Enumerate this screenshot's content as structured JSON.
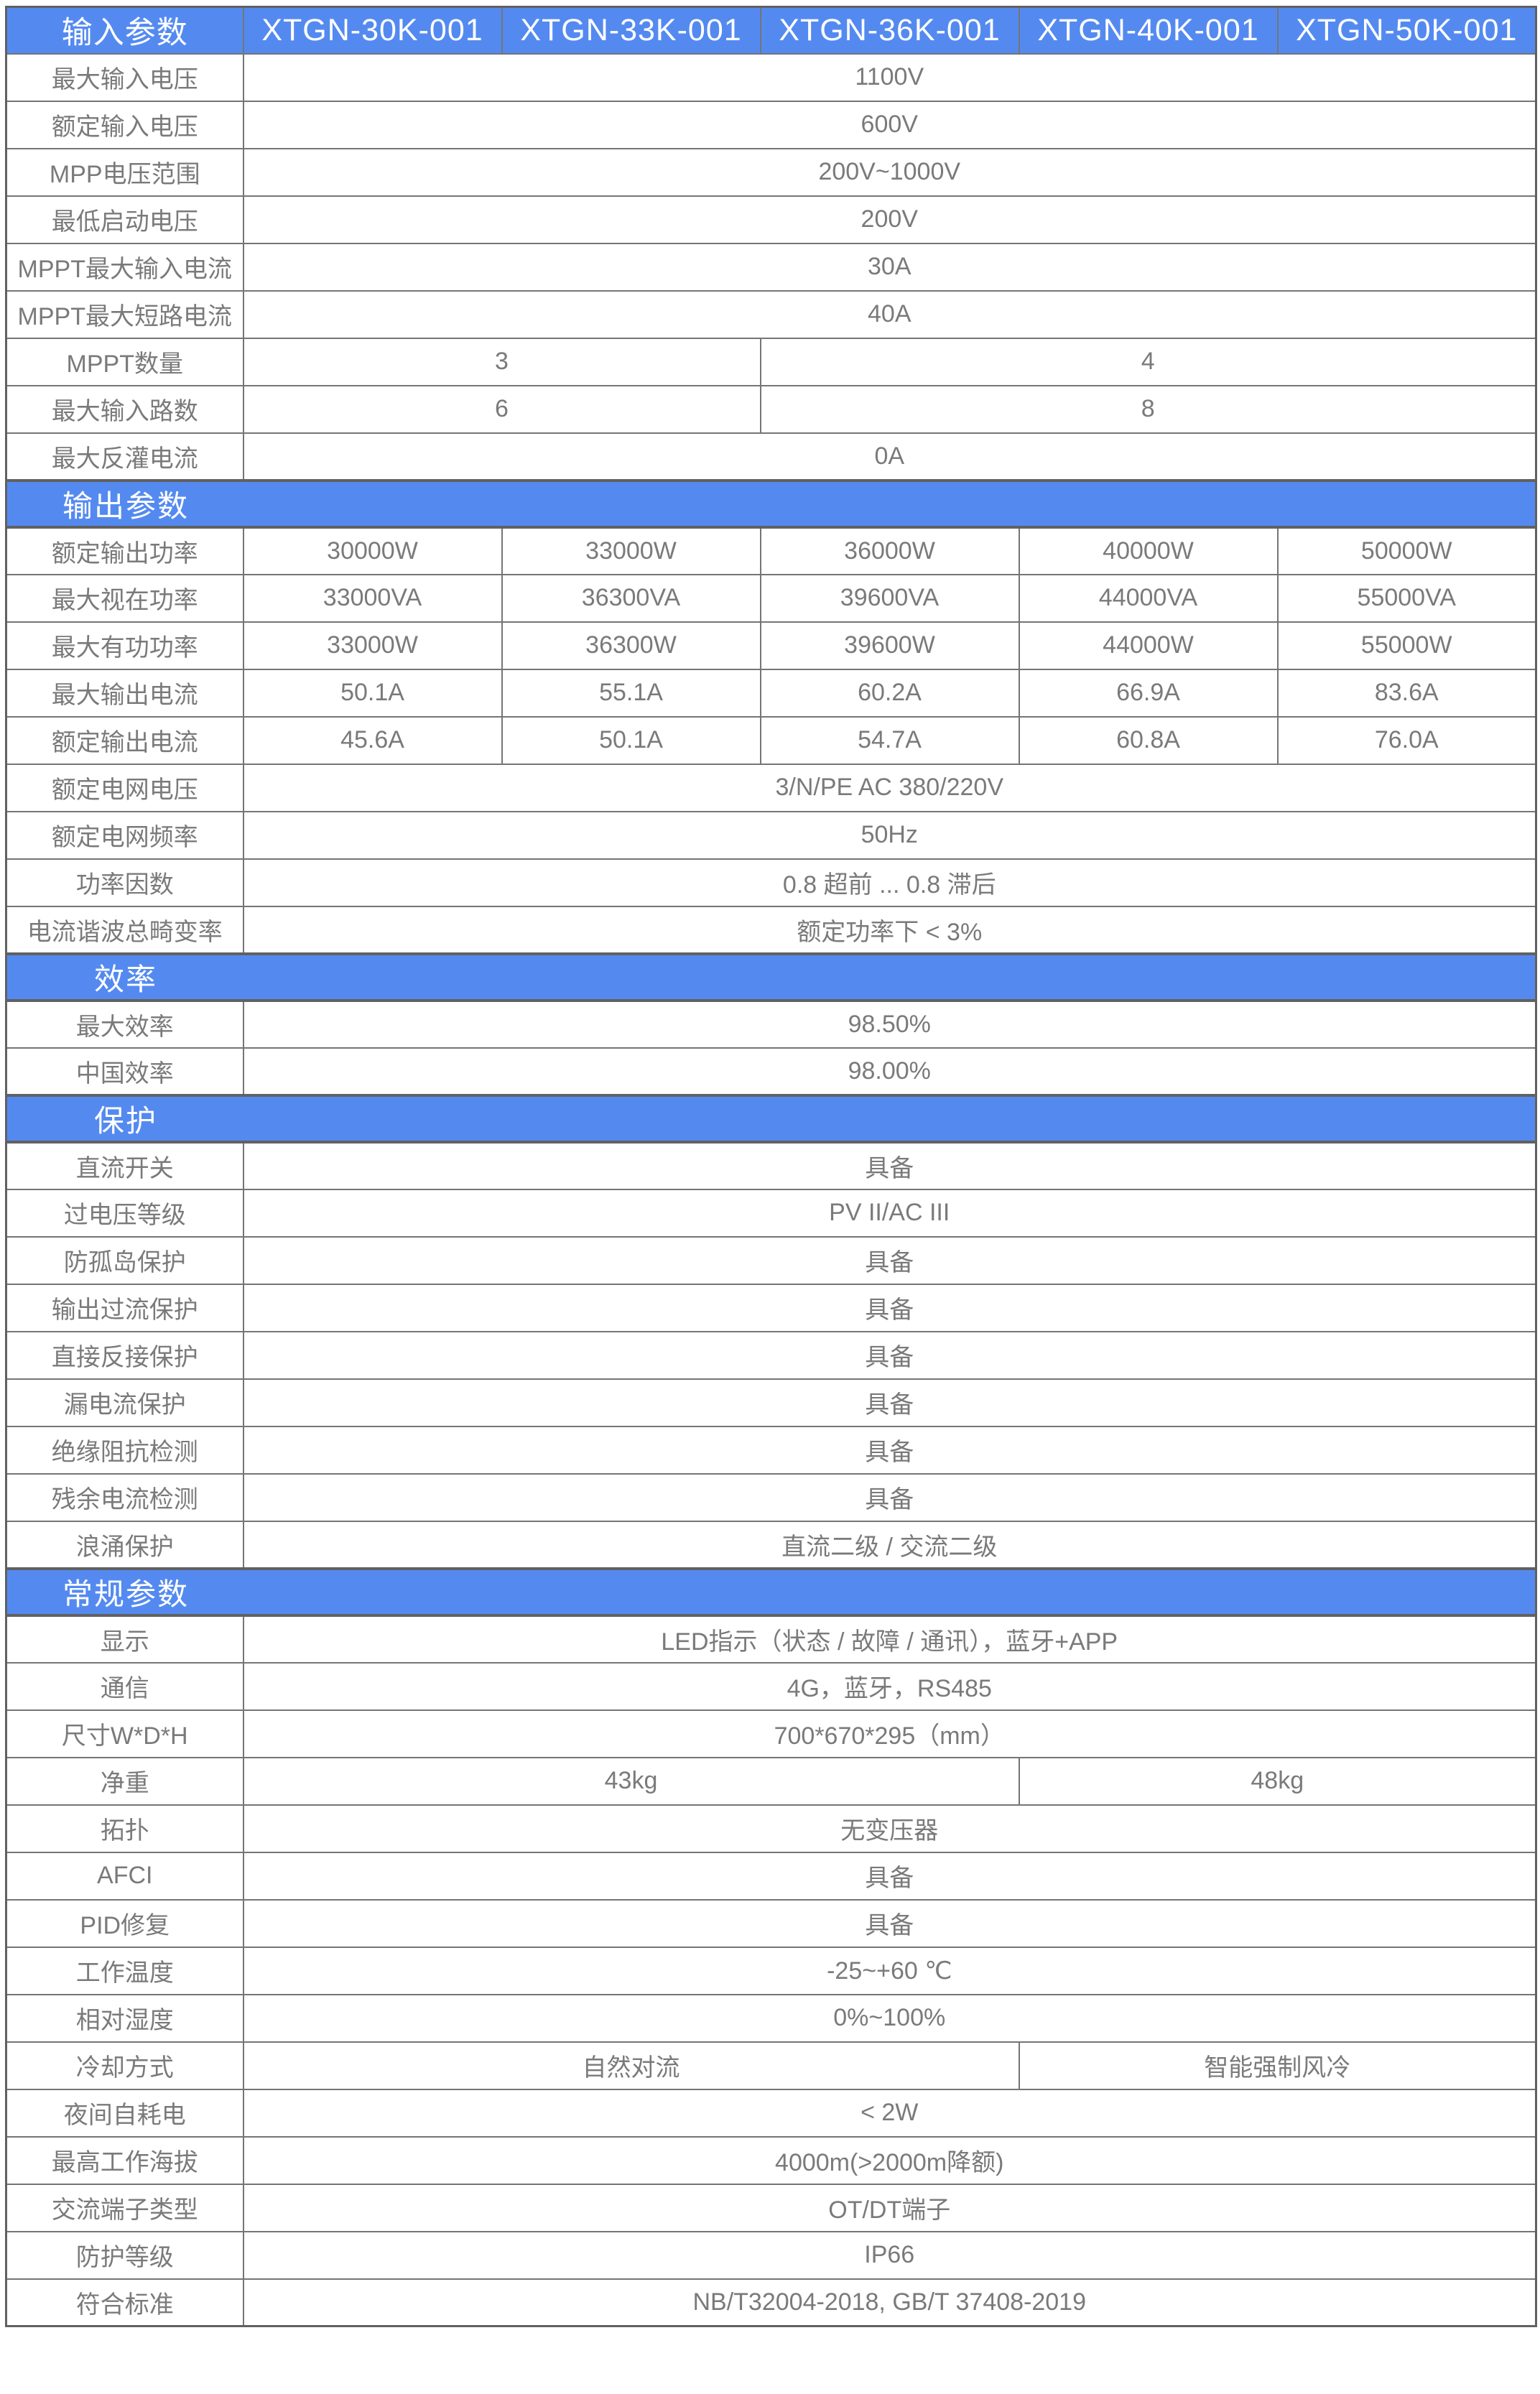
{
  "colors": {
    "accent_blue": "#548af0",
    "grid_line": "#757575",
    "outer_border": "#616161",
    "text_gray": "#7a7a7a",
    "header_text": "#ffffff",
    "background": "#ffffff"
  },
  "table": {
    "column_header_label": "输入参数",
    "model_columns": [
      "XTGN-30K-001",
      "XTGN-33K-001",
      "XTGN-36K-001",
      "XTGN-40K-001",
      "XTGN-50K-001"
    ],
    "rows": [
      {
        "type": "row",
        "label": "最大输入电压",
        "cells": [
          {
            "text": "1100V",
            "span": 5
          }
        ]
      },
      {
        "type": "row",
        "label": "额定输入电压",
        "cells": [
          {
            "text": "600V",
            "span": 5
          }
        ]
      },
      {
        "type": "row",
        "label": "MPP电压范围",
        "cells": [
          {
            "text": "200V~1000V",
            "span": 5
          }
        ]
      },
      {
        "type": "row",
        "label": "最低启动电压",
        "cells": [
          {
            "text": "200V",
            "span": 5
          }
        ]
      },
      {
        "type": "row",
        "label": "MPPT最大输入电流",
        "cells": [
          {
            "text": "30A",
            "span": 5
          }
        ]
      },
      {
        "type": "row",
        "label": "MPPT最大短路电流",
        "cells": [
          {
            "text": "40A",
            "span": 5
          }
        ]
      },
      {
        "type": "row",
        "label": "MPPT数量",
        "cells": [
          {
            "text": "3",
            "span": 2
          },
          {
            "text": "4",
            "span": 3
          }
        ]
      },
      {
        "type": "row",
        "label": "最大输入路数",
        "cells": [
          {
            "text": "6",
            "span": 2
          },
          {
            "text": "8",
            "span": 3
          }
        ]
      },
      {
        "type": "row",
        "label": "最大反灌电流",
        "cells": [
          {
            "text": "0A",
            "span": 5
          }
        ]
      },
      {
        "type": "section",
        "label": "输出参数"
      },
      {
        "type": "row",
        "label": "额定输出功率",
        "cells": [
          "30000W",
          "33000W",
          "36000W",
          "40000W",
          "50000W"
        ]
      },
      {
        "type": "row",
        "label": "最大视在功率",
        "cells": [
          "33000VA",
          "36300VA",
          "39600VA",
          "44000VA",
          "55000VA"
        ]
      },
      {
        "type": "row",
        "label": "最大有功功率",
        "cells": [
          "33000W",
          "36300W",
          "39600W",
          "44000W",
          "55000W"
        ]
      },
      {
        "type": "row",
        "label": "最大输出电流",
        "cells": [
          "50.1A",
          "55.1A",
          "60.2A",
          "66.9A",
          "83.6A"
        ]
      },
      {
        "type": "row",
        "label": "额定输出电流",
        "cells": [
          "45.6A",
          "50.1A",
          "54.7A",
          "60.8A",
          "76.0A"
        ]
      },
      {
        "type": "row",
        "label": "额定电网电压",
        "cells": [
          {
            "text": "3/N/PE AC 380/220V",
            "span": 5
          }
        ]
      },
      {
        "type": "row",
        "label": "额定电网频率",
        "cells": [
          {
            "text": "50Hz",
            "span": 5
          }
        ]
      },
      {
        "type": "row",
        "label": "功率因数",
        "cells": [
          {
            "text": "0.8 超前 ... 0.8 滞后",
            "span": 5
          }
        ]
      },
      {
        "type": "row",
        "label": "电流谐波总畸变率",
        "cells": [
          {
            "text": "额定功率下 < 3%",
            "span": 5
          }
        ]
      },
      {
        "type": "section",
        "label": "效率"
      },
      {
        "type": "row",
        "label": "最大效率",
        "cells": [
          {
            "text": "98.50%",
            "span": 5
          }
        ]
      },
      {
        "type": "row",
        "label": "中国效率",
        "cells": [
          {
            "text": "98.00%",
            "span": 5
          }
        ]
      },
      {
        "type": "section",
        "label": "保护"
      },
      {
        "type": "row",
        "label": "直流开关",
        "cells": [
          {
            "text": "具备",
            "span": 5
          }
        ]
      },
      {
        "type": "row",
        "label": "过电压等级",
        "cells": [
          {
            "text": "PV II/AC III",
            "span": 5
          }
        ]
      },
      {
        "type": "row",
        "label": "防孤岛保护",
        "cells": [
          {
            "text": "具备",
            "span": 5
          }
        ]
      },
      {
        "type": "row",
        "label": "输出过流保护",
        "cells": [
          {
            "text": "具备",
            "span": 5
          }
        ]
      },
      {
        "type": "row",
        "label": "直接反接保护",
        "cells": [
          {
            "text": "具备",
            "span": 5
          }
        ]
      },
      {
        "type": "row",
        "label": "漏电流保护",
        "cells": [
          {
            "text": "具备",
            "span": 5
          }
        ]
      },
      {
        "type": "row",
        "label": "绝缘阻抗检测",
        "cells": [
          {
            "text": "具备",
            "span": 5
          }
        ]
      },
      {
        "type": "row",
        "label": "残余电流检测",
        "cells": [
          {
            "text": "具备",
            "span": 5
          }
        ]
      },
      {
        "type": "row",
        "label": "浪涌保护",
        "cells": [
          {
            "text": "直流二级 / 交流二级",
            "span": 5
          }
        ]
      },
      {
        "type": "section",
        "label": "常规参数"
      },
      {
        "type": "row",
        "label": "显示",
        "cells": [
          {
            "text": "LED指示（状态 / 故障 / 通讯），蓝牙+APP",
            "span": 5
          }
        ]
      },
      {
        "type": "row",
        "label": "通信",
        "cells": [
          {
            "text": "4G，蓝牙，RS485",
            "span": 5
          }
        ]
      },
      {
        "type": "row",
        "label": "尺寸W*D*H",
        "cells": [
          {
            "text": "700*670*295（mm）",
            "span": 5
          }
        ]
      },
      {
        "type": "row",
        "label": "净重",
        "cells": [
          {
            "text": "43kg",
            "span": 3
          },
          {
            "text": "48kg",
            "span": 2
          }
        ]
      },
      {
        "type": "row",
        "label": "拓扑",
        "cells": [
          {
            "text": "无变压器",
            "span": 5
          }
        ]
      },
      {
        "type": "row",
        "label": "AFCI",
        "cells": [
          {
            "text": "具备",
            "span": 5
          }
        ]
      },
      {
        "type": "row",
        "label": "PID修复",
        "cells": [
          {
            "text": "具备",
            "span": 5
          }
        ]
      },
      {
        "type": "row",
        "label": "工作温度",
        "cells": [
          {
            "text": "-25~+60 ℃",
            "span": 5
          }
        ]
      },
      {
        "type": "row",
        "label": "相对湿度",
        "cells": [
          {
            "text": "0%~100%",
            "span": 5
          }
        ]
      },
      {
        "type": "row",
        "label": "冷却方式",
        "cells": [
          {
            "text": "自然对流",
            "span": 3
          },
          {
            "text": "智能强制风冷",
            "span": 2
          }
        ]
      },
      {
        "type": "row",
        "label": "夜间自耗电",
        "cells": [
          {
            "text": "< 2W",
            "span": 5
          }
        ]
      },
      {
        "type": "row",
        "label": "最高工作海拔",
        "cells": [
          {
            "text": "4000m(>2000m降额)",
            "span": 5
          }
        ]
      },
      {
        "type": "row",
        "label": "交流端子类型",
        "cells": [
          {
            "text": "OT/DT端子",
            "span": 5
          }
        ]
      },
      {
        "type": "row",
        "label": "防护等级",
        "cells": [
          {
            "text": "IP66",
            "span": 5
          }
        ]
      },
      {
        "type": "row",
        "label": "符合标准",
        "cells": [
          {
            "text": "NB/T32004-2018, GB/T 37408-2019",
            "span": 5
          }
        ]
      }
    ]
  }
}
